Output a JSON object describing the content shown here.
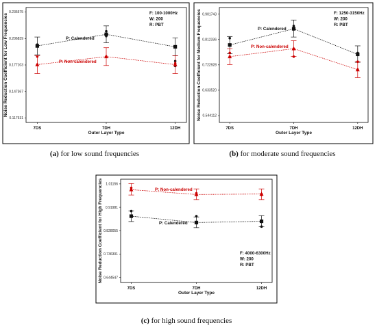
{
  "chart_data": [
    {
      "type": "line",
      "panel_id": "a",
      "caption": {
        "letter": "(a)",
        "text": " for low sound frequencies"
      },
      "xlabel": "Outer Layer Type",
      "ylabel": "Noise Reduction Coefficient for Low Frequencies",
      "categories": [
        "7DS",
        "7DH",
        "12DH"
      ],
      "yticks": [
        "0.117631",
        "0.147367",
        "0.177103",
        "0.206839",
        "0.236575"
      ],
      "ylim": [
        0.1126,
        0.2416
      ],
      "info": [
        "F: 100-1000Hz",
        "W: 200",
        "R: PBT"
      ],
      "series": [
        {
          "name": "P: Calendered",
          "color": "#111111",
          "marker": "square",
          "means": [
            0.1985,
            0.2115,
            0.1975
          ],
          "ci": [
            [
              0.1885,
              0.2085
            ],
            [
              0.202,
              0.221
            ],
            [
              0.1875,
              0.2075
            ]
          ],
          "points": [
            [
              0.1985,
              0.2
            ],
            [
              0.2095,
              0.215
            ],
            [
              0.1815,
              0.176
            ]
          ]
        },
        {
          "name": "P: Non-calendered",
          "color": "#cc0000",
          "marker": "triangle",
          "means": [
            0.1775,
            0.1865,
            0.1775
          ],
          "ci": [
            [
              0.1675,
              0.1875
            ],
            [
              0.1765,
              0.1965
            ],
            [
              0.1675,
              0.1875
            ]
          ],
          "points": [
            [
              0.1865,
              0.1775
            ],
            [
              0.1865,
              0.1865
            ],
            [
              0.1775,
              0.179
            ]
          ]
        }
      ]
    },
    {
      "type": "line",
      "panel_id": "b",
      "caption": {
        "letter": "(b)",
        "text": " for moderate sound frequencies"
      },
      "xlabel": "Outer Layer Type",
      "ylabel": "Noise Reduction Coefficient for Medium Frequencies",
      "categories": [
        "7DS",
        "7DH",
        "12DH"
      ],
      "yticks": [
        "0.544112",
        "0.633520",
        "0.722928",
        "0.812336",
        "0.901743"
      ],
      "ylim": [
        0.52,
        0.925
      ],
      "info": [
        "F: 1250-3150Hz",
        "W: 200",
        "R: PBT"
      ],
      "series": [
        {
          "name": "P: Calendered",
          "color": "#111111",
          "marker": "square",
          "means": [
            0.793,
            0.85,
            0.76
          ],
          "ci": [
            [
              0.762,
              0.823
            ],
            [
              0.821,
              0.881
            ],
            [
              0.732,
              0.79
            ]
          ],
          "points": [
            [
              0.817,
              0.793
            ],
            [
              0.85,
              0.86
            ],
            [
              0.765,
              0.76
            ]
          ]
        },
        {
          "name": "P: Non-calendered",
          "color": "#cc0000",
          "marker": "triangle",
          "means": [
            0.752,
            0.78,
            0.706
          ],
          "ci": [
            [
              0.724,
              0.78
            ],
            [
              0.753,
              0.808
            ],
            [
              0.678,
              0.734
            ]
          ],
          "points": [
            [
              0.765,
              0.752
            ],
            [
              0.752,
              0.78
            ],
            [
              0.734,
              0.706
            ]
          ]
        }
      ]
    },
    {
      "type": "line",
      "panel_id": "c",
      "caption": {
        "letter": "(c)",
        "text": " for high sound frequencies"
      },
      "xlabel": "Outer Layer Type",
      "ylabel": "Noise Reduction Coefficient for High Frequencies",
      "categories": [
        "7DS",
        "7DH",
        "12DH"
      ],
      "yticks": [
        "0.644547",
        "0.736301",
        "0.828055",
        "0.91981",
        "1.01156"
      ],
      "ylim": [
        0.625,
        1.03
      ],
      "info": [
        "F: 4000-6300Hz",
        "W: 200",
        "R: PBT"
      ],
      "series": [
        {
          "name": "P: Non-calendered",
          "color": "#cc0000",
          "marker": "triangle",
          "means": [
            0.989,
            0.97,
            0.972
          ],
          "ci": [
            [
              0.968,
              1.013
            ],
            [
              0.95,
              0.992
            ],
            [
              0.95,
              0.992
            ]
          ],
          "points": [
            [
              0.996,
              0.989
            ],
            [
              0.97,
              0.975
            ],
            [
              0.972,
              0.968
            ]
          ]
        },
        {
          "name": "P: Calendered",
          "color": "#111111",
          "marker": "square",
          "means": [
            0.885,
            0.86,
            0.865
          ],
          "ci": [
            [
              0.864,
              0.906
            ],
            [
              0.84,
              0.882
            ],
            [
              0.844,
              0.887
            ]
          ],
          "points": [
            [
              0.905,
              0.885
            ],
            [
              0.885,
              0.86
            ],
            [
              0.844,
              0.865
            ]
          ]
        }
      ]
    }
  ]
}
